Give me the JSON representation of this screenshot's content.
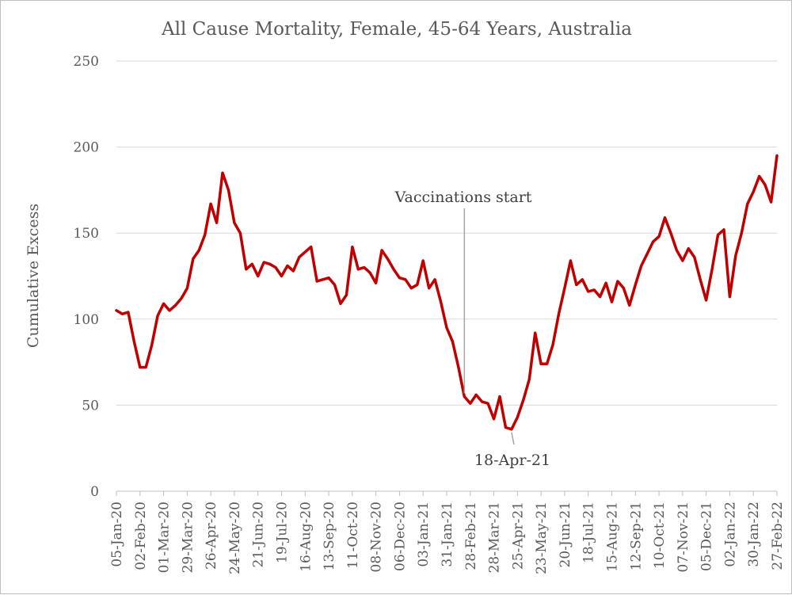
{
  "chart_data": {
    "type": "line",
    "title": "All Cause Mortality, Female, 45-64 Years, Australia",
    "xlabel": "",
    "ylabel": "Cumulative Excess",
    "ylim": [
      0,
      250
    ],
    "yticks": [
      0,
      50,
      100,
      150,
      200,
      250
    ],
    "grid": true,
    "x_tick_labels": [
      "05-Jan-20",
      "02-Feb-20",
      "01-Mar-20",
      "29-Mar-20",
      "26-Apr-20",
      "24-May-20",
      "21-Jun-20",
      "19-Jul-20",
      "16-Aug-20",
      "13-Sep-20",
      "11-Oct-20",
      "08-Nov-20",
      "06-Dec-20",
      "03-Jan-21",
      "31-Jan-21",
      "28-Feb-21",
      "28-Mar-21",
      "25-Apr-21",
      "23-May-21",
      "20-Jun-21",
      "18-Jul-21",
      "15-Aug-21",
      "12-Sep-21",
      "10-Oct-21",
      "07-Nov-21",
      "05-Dec-21",
      "02-Jan-22",
      "30-Jan-22",
      "27-Feb-22"
    ],
    "series": [
      {
        "color": "#c00000",
        "values": [
          105,
          103,
          104,
          87,
          72,
          72,
          85,
          102,
          109,
          105,
          108,
          112,
          118,
          135,
          140,
          149,
          167,
          156,
          185,
          175,
          156,
          150,
          129,
          132,
          125,
          133,
          132,
          130,
          125,
          131,
          128,
          136,
          139,
          142,
          122,
          123,
          124,
          120,
          109,
          114,
          142,
          129,
          130,
          127,
          121,
          140,
          135,
          129,
          124,
          123,
          118,
          120,
          134,
          118,
          123,
          110,
          95,
          87,
          72,
          55,
          51,
          56,
          52,
          51,
          42,
          55,
          37,
          36,
          43,
          53,
          65,
          92,
          74,
          74,
          85,
          103,
          118,
          134,
          120,
          123,
          116,
          117,
          113,
          121,
          110,
          122,
          118,
          108,
          120,
          131,
          138,
          145,
          148,
          159,
          150,
          140,
          134,
          141,
          136,
          123,
          111,
          129,
          149,
          152,
          113,
          137,
          150,
          167,
          174,
          183,
          178,
          168,
          195
        ]
      }
    ],
    "annotations": [
      {
        "text": "Vaccinations start",
        "x_index": 59,
        "y": 55
      },
      {
        "text": "18-Apr-21",
        "x_index": 67,
        "y": 36
      }
    ]
  }
}
